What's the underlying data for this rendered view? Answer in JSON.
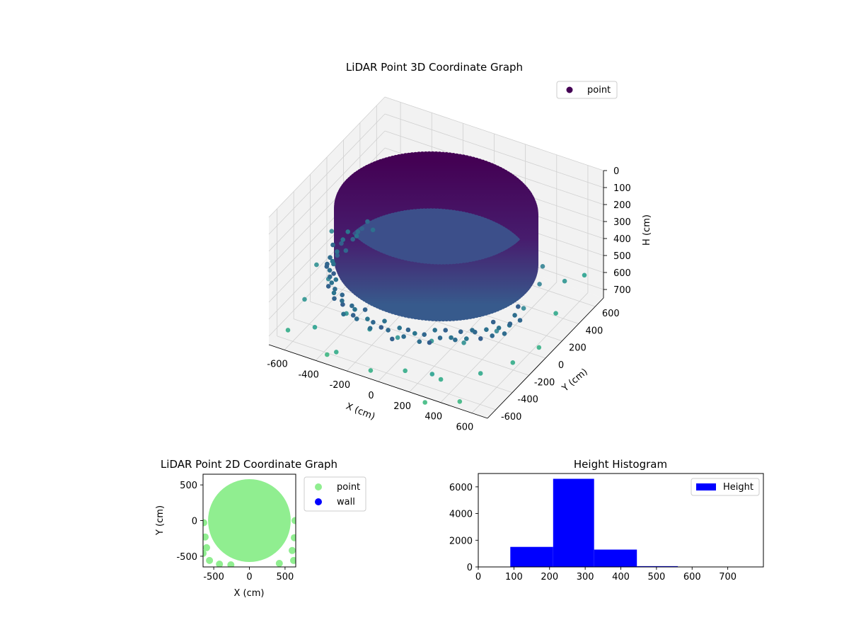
{
  "colors": {
    "background": "#ffffff",
    "pane": "#f2f2f2",
    "grid": "#d0d0d0",
    "scatter2d_point": "#90ee90",
    "scatter2d_wall": "#0000ff",
    "histogram": "#0000ff",
    "viridis_dark": "#440154",
    "viridis_mid": "#31688e",
    "viridis_teal": "#26a784",
    "viridis_green": "#4ec36b"
  },
  "chart_data": [
    {
      "id": "lidar-3d",
      "type": "scatter",
      "projection": "3d",
      "title": "LiDAR Point 3D Coordinate Graph",
      "xlabel": "X (cm)",
      "ylabel": "Y (cm)",
      "zlabel": "H (cm)",
      "xlim": [
        -700,
        700
      ],
      "ylim": [
        -700,
        700
      ],
      "zlim": [
        0,
        750
      ],
      "z_inverted": true,
      "grid": true,
      "colormap": "viridis",
      "legend": {
        "placement": "top-right",
        "entries": [
          {
            "label": "point",
            "color": "#440154"
          }
        ]
      },
      "xticks": [
        -600,
        -400,
        -200,
        0,
        200,
        400,
        600
      ],
      "yticks": [
        -600,
        -400,
        -200,
        0,
        200,
        400,
        600
      ],
      "zticks": [
        0,
        100,
        200,
        300,
        400,
        500,
        600,
        700
      ],
      "shape": {
        "wall_radius": 560,
        "wall_top_h": 100,
        "wall_bottom_h": 400,
        "floor_h": 400
      },
      "scattered_points": [
        {
          "x": 250,
          "y": -520,
          "h": 720,
          "c": 0.55
        },
        {
          "x": 120,
          "y": -600,
          "h": 700,
          "c": 0.6
        },
        {
          "x": -80,
          "y": -640,
          "h": 740,
          "c": 0.62
        },
        {
          "x": -300,
          "y": -640,
          "h": 700,
          "c": 0.6
        },
        {
          "x": -480,
          "y": -560,
          "h": 650,
          "c": 0.55
        },
        {
          "x": -620,
          "y": -420,
          "h": 600,
          "c": 0.5
        },
        {
          "x": -660,
          "y": -200,
          "h": 520,
          "c": 0.48
        },
        {
          "x": -680,
          "y": 20,
          "h": 440,
          "c": 0.45
        },
        {
          "x": -640,
          "y": 250,
          "h": 420,
          "c": 0.45
        },
        {
          "x": -600,
          "y": 420,
          "h": 480,
          "c": 0.48
        },
        {
          "x": 380,
          "y": -660,
          "h": 640,
          "c": 0.6
        },
        {
          "x": 560,
          "y": -520,
          "h": 620,
          "c": 0.58
        },
        {
          "x": 650,
          "y": -300,
          "h": 640,
          "c": 0.6
        },
        {
          "x": 690,
          "y": -60,
          "h": 660,
          "c": 0.62
        },
        {
          "x": 660,
          "y": 200,
          "h": 600,
          "c": 0.58
        },
        {
          "x": 600,
          "y": 420,
          "h": 540,
          "c": 0.5
        },
        {
          "x": -320,
          "y": -480,
          "h": 560,
          "c": 0.5
        },
        {
          "x": -150,
          "y": -520,
          "h": 580,
          "c": 0.52
        },
        {
          "x": 40,
          "y": -540,
          "h": 560,
          "c": 0.5
        },
        {
          "x": 220,
          "y": -470,
          "h": 560,
          "c": 0.5
        },
        {
          "x": 400,
          "y": -420,
          "h": 540,
          "c": 0.48
        },
        {
          "x": -520,
          "y": -320,
          "h": 500,
          "c": 0.45
        },
        {
          "x": -560,
          "y": -100,
          "h": 480,
          "c": 0.42
        },
        {
          "x": -540,
          "y": 120,
          "h": 470,
          "c": 0.42
        },
        {
          "x": -500,
          "y": 300,
          "h": 460,
          "c": 0.42
        },
        {
          "x": 520,
          "y": -250,
          "h": 520,
          "c": 0.45
        },
        {
          "x": 560,
          "y": 0,
          "h": 500,
          "c": 0.44
        },
        {
          "x": 540,
          "y": 230,
          "h": 480,
          "c": 0.42
        },
        {
          "x": 480,
          "y": 380,
          "h": 470,
          "c": 0.42
        },
        {
          "x": -250,
          "y": -350,
          "h": 480,
          "c": 0.42
        },
        {
          "x": 0,
          "y": -380,
          "h": 470,
          "c": 0.42
        },
        {
          "x": 260,
          "y": -330,
          "h": 470,
          "c": 0.42
        },
        {
          "x": -650,
          "y": 550,
          "h": 560,
          "c": 0.52
        },
        {
          "x": -560,
          "y": 600,
          "h": 600,
          "c": 0.55
        },
        {
          "x": -420,
          "y": 640,
          "h": 560,
          "c": 0.52
        },
        {
          "x": -620,
          "y": -620,
          "h": 680,
          "c": 0.6
        },
        {
          "x": 620,
          "y": 620,
          "h": 600,
          "c": 0.55
        },
        {
          "x": -380,
          "y": -600,
          "h": 760,
          "c": 0.65
        },
        {
          "x": 480,
          "y": -620,
          "h": 760,
          "c": 0.65
        },
        {
          "x": 300,
          "y": -700,
          "h": 780,
          "c": 0.66
        }
      ]
    },
    {
      "id": "lidar-2d",
      "type": "scatter",
      "title": "LiDAR Point 2D Coordinate Graph",
      "xlabel": "X (cm)",
      "ylabel": "Y (cm)",
      "xlim": [
        -650,
        650
      ],
      "ylim": [
        -650,
        650
      ],
      "xticks": [
        -500,
        0,
        500
      ],
      "yticks": [
        -500,
        0,
        500
      ],
      "grid": false,
      "legend": {
        "placement": "outside-right",
        "entries": [
          {
            "label": "point",
            "color": "#90ee90"
          },
          {
            "label": "wall",
            "color": "#0000ff"
          }
        ]
      },
      "series": [
        {
          "name": "point",
          "color": "#90ee90",
          "shape": "filled-disk",
          "radius": 580
        },
        {
          "name": "wall",
          "color": "#0000ff",
          "values": []
        }
      ],
      "outliers": [
        {
          "x": -600,
          "y": -380
        },
        {
          "x": -560,
          "y": -560
        },
        {
          "x": -420,
          "y": -610
        },
        {
          "x": -650,
          "y": -460
        },
        {
          "x": 600,
          "y": -420
        },
        {
          "x": 620,
          "y": -560
        },
        {
          "x": -640,
          "y": -30
        },
        {
          "x": 640,
          "y": 0
        },
        {
          "x": 630,
          "y": -240
        },
        {
          "x": -620,
          "y": -230
        },
        {
          "x": -260,
          "y": -620
        },
        {
          "x": 420,
          "y": -600
        }
      ]
    },
    {
      "id": "height-hist",
      "type": "bar",
      "subtype": "histogram",
      "title": "Height Histogram",
      "xlim": [
        0,
        800
      ],
      "ylim": [
        0,
        7000
      ],
      "xticks": [
        0,
        100,
        200,
        300,
        400,
        500,
        600,
        700
      ],
      "yticks": [
        0,
        2000,
        4000,
        6000
      ],
      "grid": false,
      "legend": {
        "placement": "top-right",
        "entries": [
          {
            "label": "Height",
            "color": "#0000ff"
          }
        ]
      },
      "series": [
        {
          "name": "Height",
          "color": "#0000ff"
        }
      ],
      "bins": [
        {
          "start": 90,
          "end": 210,
          "count": 1500
        },
        {
          "start": 210,
          "end": 325,
          "count": 6600
        },
        {
          "start": 325,
          "end": 445,
          "count": 1300
        },
        {
          "start": 445,
          "end": 560,
          "count": 60
        },
        {
          "start": 560,
          "end": 680,
          "count": 10
        },
        {
          "start": 680,
          "end": 795,
          "count": 5
        }
      ]
    }
  ]
}
